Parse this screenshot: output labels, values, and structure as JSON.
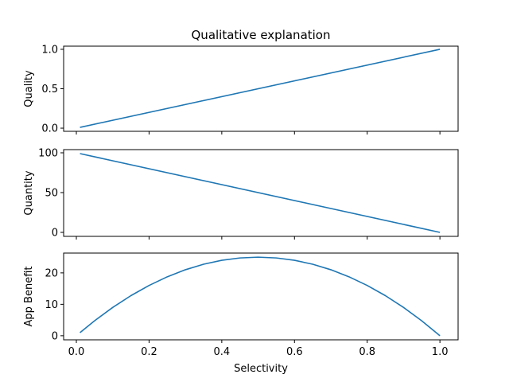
{
  "chart_data": {
    "type": "line",
    "title": "Qualitative explanation",
    "xlabel": "Selectivity",
    "xlim": [
      -0.035,
      1.05
    ],
    "xticks": [
      0.0,
      0.2,
      0.4,
      0.6,
      0.8,
      1.0
    ],
    "xtick_labels": [
      "0.0",
      "0.2",
      "0.4",
      "0.6",
      "0.8",
      "1.0"
    ],
    "line_color": "#1f77b4",
    "subplots": [
      {
        "ylabel": "Quality",
        "ylim": [
          -0.04,
          1.04
        ],
        "yticks": [
          0.0,
          0.5,
          1.0
        ],
        "ytick_labels": [
          "0.0",
          "0.5",
          "1.0"
        ],
        "show_xtick_labels": false,
        "series": [
          {
            "x": [
              0.01,
              1.0
            ],
            "y": [
              0.01,
              1.0
            ]
          }
        ]
      },
      {
        "ylabel": "Quantity",
        "ylim": [
          -5,
          104
        ],
        "yticks": [
          0,
          50,
          100
        ],
        "ytick_labels": [
          "0",
          "50",
          "100"
        ],
        "show_xtick_labels": false,
        "series": [
          {
            "x": [
              0.01,
              1.0
            ],
            "y": [
              99,
              0
            ]
          }
        ]
      },
      {
        "ylabel": "App Benefit",
        "ylim": [
          -1.3,
          26.3
        ],
        "yticks": [
          0,
          10,
          20
        ],
        "ytick_labels": [
          "0",
          "10",
          "20"
        ],
        "show_xtick_labels": true,
        "series": [
          {
            "x": [
              0.01,
              0.05,
              0.1,
              0.15,
              0.2,
              0.25,
              0.3,
              0.35,
              0.4,
              0.45,
              0.5,
              0.55,
              0.6,
              0.65,
              0.7,
              0.75,
              0.8,
              0.85,
              0.9,
              0.95,
              1.0
            ],
            "y": [
              0.99,
              4.75,
              9.0,
              12.75,
              16.0,
              18.75,
              21.0,
              22.75,
              24.0,
              24.75,
              25.0,
              24.75,
              24.0,
              22.75,
              21.0,
              18.75,
              16.0,
              12.75,
              9.0,
              4.75,
              0.0
            ]
          }
        ]
      }
    ]
  }
}
